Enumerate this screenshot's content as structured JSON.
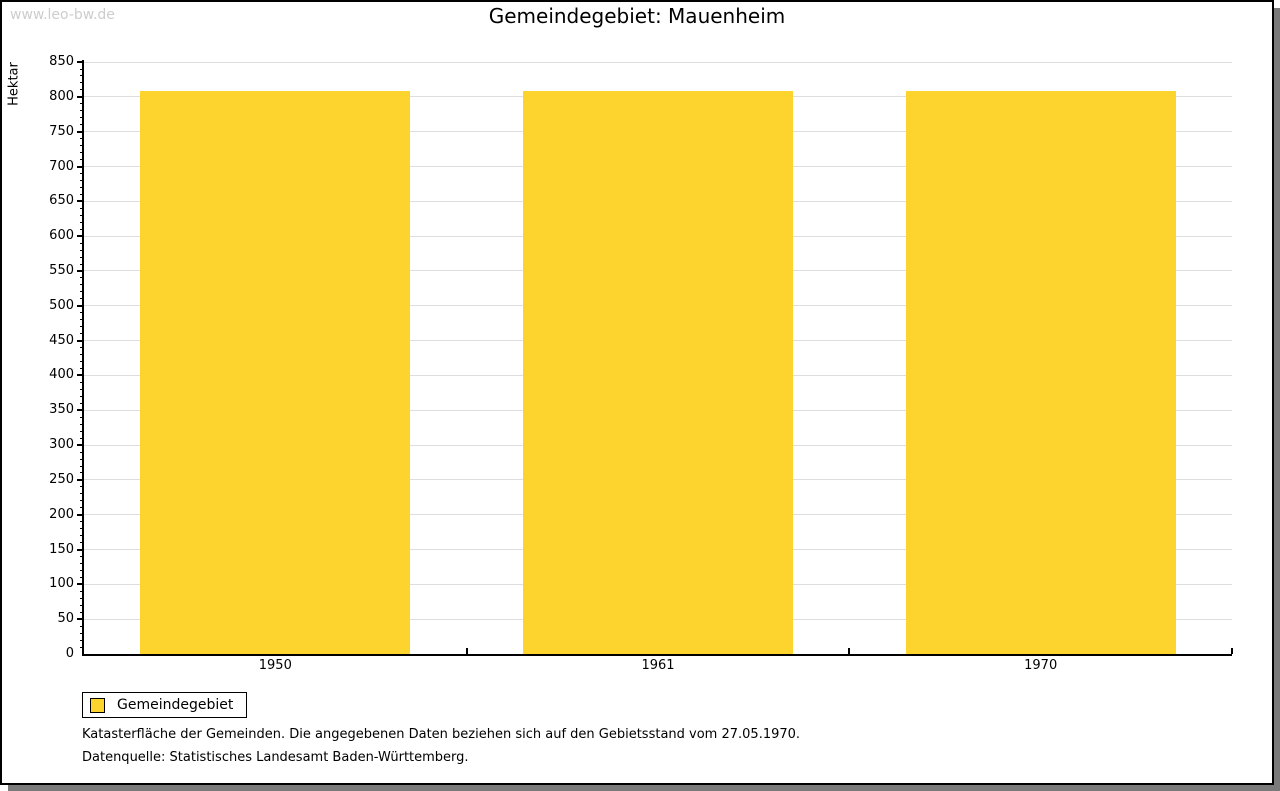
{
  "watermark": "www.leo-bw.de",
  "title": "Gemeindegebiet: Mauenheim",
  "chart_data": {
    "type": "bar",
    "title": "Gemeindegebiet: Mauenheim",
    "categories": [
      "1950",
      "1961",
      "1970"
    ],
    "series": [
      {
        "name": "Gemeindegebiet",
        "values": [
          808,
          808,
          808
        ]
      }
    ],
    "xlabel": "",
    "ylabel": "Hektar",
    "ylim": [
      0,
      850
    ],
    "ytick_step": 50,
    "minor_tick_step": 10,
    "grid": true,
    "bar_color": "#fcd42d",
    "gridline_color": "#dedede",
    "legend_position": "bottom-left"
  },
  "legend": {
    "label": "Gemeindegebiet",
    "swatch_color": "#fcd42d"
  },
  "footer": {
    "line1": "Katasterfläche der Gemeinden. Die angegebenen Daten beziehen sich auf den Gebietsstand vom 27.05.1970.",
    "line2": "Datenquelle: Statistisches Landesamt Baden-Württemberg."
  }
}
